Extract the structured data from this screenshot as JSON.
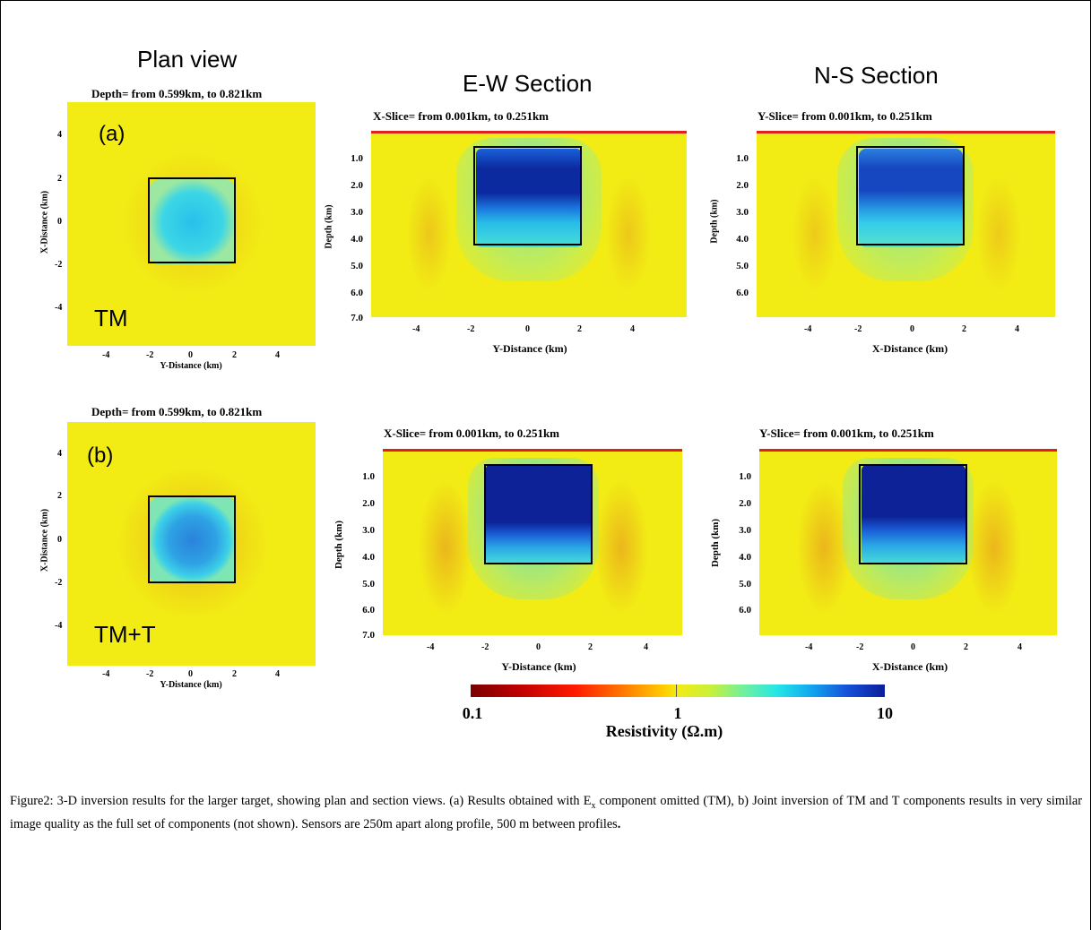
{
  "headers": {
    "plan": "Plan view",
    "ew": "E-W Section",
    "ns": "N-S Section"
  },
  "row_a": {
    "letter": "(a)",
    "label": "TM",
    "plan_title": "Depth= from 0.599km, to 0.821km",
    "ew_title": "X-Slice= from 0.001km, to 0.251km",
    "ns_title": "Y-Slice= from 0.001km, to 0.251km"
  },
  "row_b": {
    "letter": "(b)",
    "label": "TM+T",
    "plan_title": "Depth= from 0.599km, to 0.821km",
    "ew_title": "X-Slice= from 0.001km, to 0.251km",
    "ns_title": "Y-Slice= from 0.001km, to 0.251km"
  },
  "axes": {
    "plan_ylabel": "X-Distance (km)",
    "plan_xlabel": "Y-Distance (km)",
    "ew_xlabel": "Y-Distance (km)",
    "ns_xlabel": "X-Distance (km)",
    "depth_label": "Depth (km)",
    "plan_x_ticks": [
      "-4",
      "-2",
      "0",
      "2",
      "4"
    ],
    "plan_y_ticks": [
      "4",
      "2",
      "0",
      "-2",
      "-4"
    ],
    "section_x_ticks": [
      "-4",
      "-2",
      "0",
      "2",
      "4"
    ],
    "depth_ticks_ew": [
      "1.0",
      "2.0",
      "3.0",
      "4.0",
      "5.0",
      "6.0",
      "7.0"
    ],
    "depth_ticks_ns": [
      "1.0",
      "2.0",
      "3.0",
      "4.0",
      "5.0",
      "6.0"
    ]
  },
  "colorbar": {
    "min_label": "0.1",
    "mid_label": "1",
    "max_label": "10",
    "title": "Resistivity (Ω.m)",
    "scale": "log",
    "colors": [
      "#7a0000",
      "#ff1a00",
      "#ffd000",
      "#f2ec14",
      "#6ff0a0",
      "#24e6e6",
      "#1650d8",
      "#0a1e9a"
    ]
  },
  "caption": {
    "p1": "Figure2: 3-D inversion results for the larger target, showing plan and section views. (a) Results obtained with E",
    "sub": "x",
    "p2": " component omitted (TM), b) Joint inversion of TM and T components results in very similar image quality as the full set of components (not shown). Sensors are 250m apart along profile, 500 m between profiles",
    "end": "."
  }
}
